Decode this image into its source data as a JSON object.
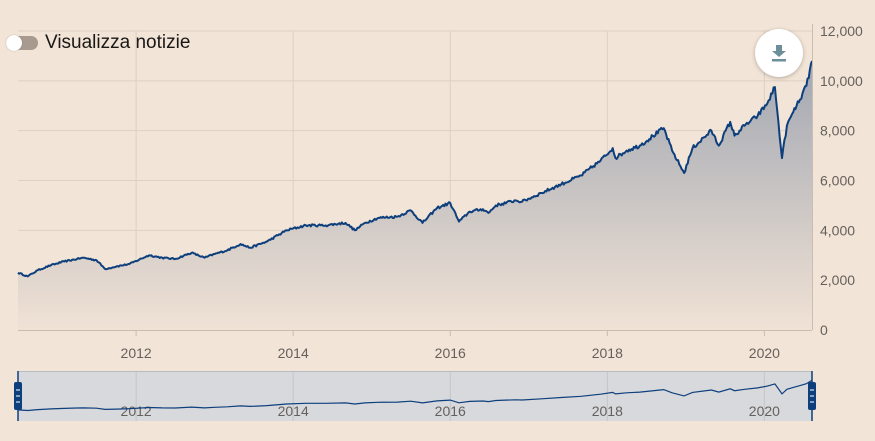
{
  "controls": {
    "news_toggle_label": "Visualizza notizie",
    "news_toggle_on": false,
    "download_icon": "download-icon"
  },
  "colors": {
    "background": "#f2e4d6",
    "line": "#0d3f7d",
    "area_top": "#a2a7b2",
    "area_bottom": "#f0e2d5",
    "grid": "#ddd0c5",
    "axis_text": "#66605c",
    "navigator_bg": "#d7d9dd"
  },
  "chart_data": {
    "type": "area",
    "title": "",
    "xlabel": "",
    "ylabel": "",
    "ylim": [
      0,
      12000
    ],
    "y_ticks": [
      0,
      2000,
      4000,
      6000,
      8000,
      10000,
      12000
    ],
    "y_tick_labels": [
      "0",
      "2,000",
      "4,000",
      "6,000",
      "8,000",
      "10,000",
      "12,000"
    ],
    "x_ticks": [
      "2012",
      "2014",
      "2016",
      "2018",
      "2020"
    ],
    "xlim": [
      "2010-07-01",
      "2020-08-10"
    ],
    "grid": true,
    "series": [
      {
        "x": [
          "2010-07-01",
          "2010-08-15",
          "2010-10-01",
          "2010-12-01",
          "2011-02-01",
          "2011-04-01",
          "2011-05-01",
          "2011-07-01",
          "2011-08-10",
          "2011-10-01",
          "2011-12-01",
          "2012-03-01",
          "2012-05-01",
          "2012-07-01",
          "2012-09-15",
          "2012-11-15",
          "2013-01-01",
          "2013-03-01",
          "2013-05-01",
          "2013-06-15",
          "2013-09-01",
          "2013-12-01",
          "2014-03-01",
          "2014-06-01",
          "2014-09-01",
          "2014-10-15",
          "2014-12-01",
          "2015-02-01",
          "2015-05-01",
          "2015-07-01",
          "2015-08-25",
          "2015-11-01",
          "2016-01-01",
          "2016-02-11",
          "2016-04-01",
          "2016-06-01",
          "2016-06-27",
          "2016-08-01",
          "2016-11-01",
          "2016-12-01",
          "2017-03-01",
          "2017-06-01",
          "2017-09-01",
          "2017-12-01",
          "2018-01-26",
          "2018-02-08",
          "2018-04-01",
          "2018-06-01",
          "2018-09-20",
          "2018-10-29",
          "2018-12-24",
          "2019-02-01",
          "2019-04-30",
          "2019-06-03",
          "2019-07-26",
          "2019-08-15",
          "2019-10-01",
          "2019-12-01",
          "2020-01-15",
          "2020-02-19",
          "2020-03-23",
          "2020-04-15",
          "2020-05-15",
          "2020-06-15",
          "2020-07-15",
          "2020-08-10"
        ],
        "values": [
          2300,
          2150,
          2400,
          2600,
          2750,
          2850,
          2900,
          2800,
          2450,
          2550,
          2650,
          3000,
          2900,
          2850,
          3100,
          2900,
          3050,
          3200,
          3450,
          3300,
          3550,
          4000,
          4200,
          4200,
          4300,
          4000,
          4300,
          4500,
          4550,
          4800,
          4300,
          4900,
          5100,
          4350,
          4750,
          4850,
          4700,
          5000,
          5200,
          5150,
          5500,
          5850,
          6200,
          6800,
          7300,
          6900,
          7200,
          7400,
          8100,
          7200,
          6300,
          7300,
          8000,
          7400,
          8350,
          7800,
          8200,
          8600,
          9100,
          9750,
          6900,
          8200,
          8750,
          9250,
          9800,
          10800
        ]
      }
    ],
    "navigator": {
      "x_ticks": [
        "2012",
        "2014",
        "2016",
        "2018",
        "2020"
      ]
    }
  }
}
